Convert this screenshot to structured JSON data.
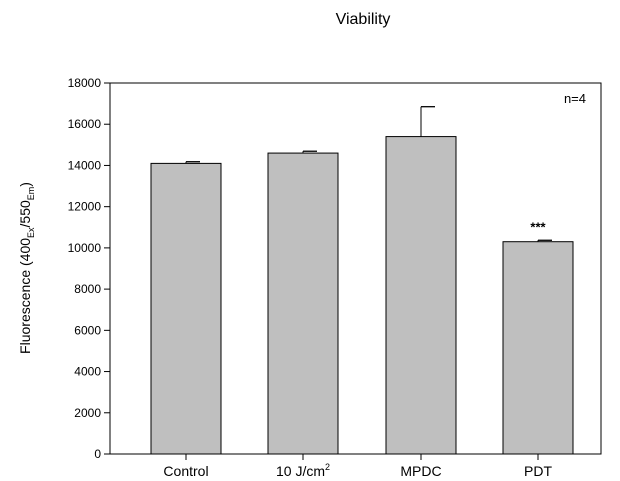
{
  "chart_data": {
    "type": "bar",
    "title": "Viability",
    "ylabel": {
      "main": "Fluorescence (400",
      "sub1": "Ex",
      "mid": "/550",
      "sub2": "Em",
      "end": ")"
    },
    "xlabel": "",
    "ylim": [
      0,
      18000
    ],
    "yticks": [
      0,
      2000,
      4000,
      6000,
      8000,
      10000,
      12000,
      14000,
      16000,
      18000
    ],
    "categories": [
      {
        "label": "Control",
        "sup": ""
      },
      {
        "label": "10 J/cm",
        "sup": "2"
      },
      {
        "label": "MPDC",
        "sup": ""
      },
      {
        "label": "PDT",
        "sup": ""
      }
    ],
    "values": [
      14100,
      14600,
      15400,
      10300
    ],
    "errors": [
      80,
      90,
      1450,
      70
    ],
    "significance": [
      "",
      "",
      "",
      "***"
    ],
    "annotation": "n=4",
    "bar_color": "#bfbfbf",
    "edge_color": "#000000",
    "grid": false,
    "legend": "none"
  }
}
